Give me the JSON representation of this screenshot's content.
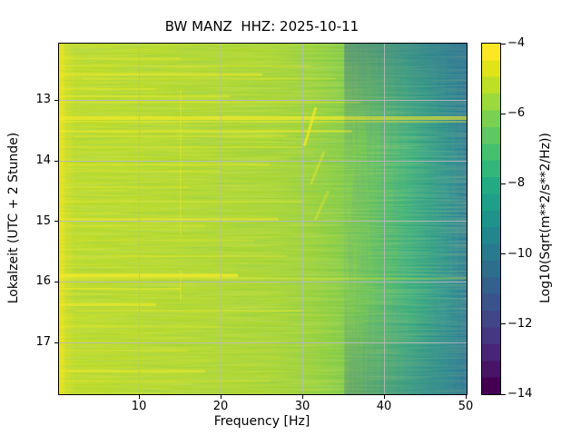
{
  "figure": {
    "title": "BW MANZ  HHZ: 2025-10-11",
    "background": "#ffffff"
  },
  "axes": {
    "xlabel": "Frequency [Hz]",
    "ylabel": "Lokalzeit (UTC + 2 Stunde)",
    "x_ticks": [
      {
        "v": 10,
        "label": "10"
      },
      {
        "v": 20,
        "label": "20"
      },
      {
        "v": 30,
        "label": "30"
      },
      {
        "v": 40,
        "label": "40"
      },
      {
        "v": 50,
        "label": "50"
      }
    ],
    "y_ticks": [
      {
        "v": 13,
        "label": "13"
      },
      {
        "v": 14,
        "label": "14"
      },
      {
        "v": 15,
        "label": "15"
      },
      {
        "v": 16,
        "label": "16"
      },
      {
        "v": 17,
        "label": "17"
      }
    ],
    "grid_color": "#b8b8c0"
  },
  "colorbar": {
    "label": "Log10(Sqrt(m**2/s**2/Hz))",
    "ticks": [
      {
        "v": -4,
        "label": "−4"
      },
      {
        "v": -6,
        "label": "−6"
      },
      {
        "v": -8,
        "label": "−8"
      },
      {
        "v": -10,
        "label": "−10"
      },
      {
        "v": -12,
        "label": "−12"
      },
      {
        "v": -14,
        "label": "−14"
      }
    ],
    "value_range_top_bottom": [
      -4,
      -14
    ],
    "colormap": "viridis",
    "colors_top_to_bottom": [
      "#fde725",
      "#dfe318",
      "#bddf26",
      "#9bd93c",
      "#7ad151",
      "#5ec962",
      "#46c06f",
      "#32b67a",
      "#24aa83",
      "#1f9e89",
      "#1f928c",
      "#23868e",
      "#287a8e",
      "#2d6d8e",
      "#33608d",
      "#3a538b",
      "#404688",
      "#453781",
      "#482576",
      "#481467",
      "#440154"
    ]
  },
  "chart_data": {
    "type": "heatmap",
    "subtype": "spectrogram",
    "title": "BW MANZ  HHZ: 2025-10-11",
    "network_station_channel": "BW MANZ HHZ",
    "date": "2025-10-11",
    "xlabel": "Frequency [Hz]",
    "ylabel": "Lokalzeit (UTC + 2 Stunde)",
    "x_range_hz": [
      0.1,
      50
    ],
    "y_range_hours_local": [
      12.05,
      17.84
    ],
    "colormap": "viridis",
    "value_scale_label": "Log10(Sqrt(m**2/s**2/Hz))",
    "value_range": [
      -14,
      -4
    ],
    "grid": true,
    "legend_position": "right-colorbar",
    "mean_spectrum_profile": [
      {
        "f": 0.2,
        "level": -4.2
      },
      {
        "f": 1.0,
        "level": -5.1
      },
      {
        "f": 10,
        "level": -5.3
      },
      {
        "f": 20,
        "level": -5.4
      },
      {
        "f": 30,
        "level": -5.7
      },
      {
        "f": 35,
        "level": -6.1
      },
      {
        "f": 40,
        "level": -6.8
      },
      {
        "f": 45,
        "level": -7.6
      },
      {
        "f": 50,
        "level": -8.3
      }
    ],
    "heatmap_gradient": [
      {
        "pos": 0,
        "color": "#ece41f"
      },
      {
        "pos": 0.9,
        "color": "#e2e31c"
      },
      {
        "pos": 1.6,
        "color": "#cfdf22"
      },
      {
        "pos": 4,
        "color": "#bcdb29"
      },
      {
        "pos": 30,
        "color": "#b2d82e"
      },
      {
        "pos": 52,
        "color": "#a8d533"
      },
      {
        "pos": 62,
        "color": "#99d13b"
      },
      {
        "pos": 69,
        "color": "#85cc46"
      },
      {
        "pos": 75,
        "color": "#6bc553"
      },
      {
        "pos": 81,
        "color": "#4fbb6b"
      },
      {
        "pos": 86,
        "color": "#38b07c"
      },
      {
        "pos": 91,
        "color": "#2a9e86"
      },
      {
        "pos": 95.5,
        "color": "#268e91"
      },
      {
        "pos": 100,
        "color": "#2c7d96"
      }
    ],
    "edge_shading": {
      "color": "#2d6394",
      "start_frac": 0.7,
      "top_alpha": 0.42,
      "bottom_alpha": 0.28
    },
    "streak_color": "#f2ea2a",
    "transient_streaks": [
      {
        "t": 12.3,
        "f0": 0.1,
        "f1": 15,
        "opacity": 0.45,
        "h": 2
      },
      {
        "t": 12.42,
        "f0": 0.1,
        "f1": 31,
        "opacity": 0.3,
        "h": 2
      },
      {
        "t": 12.56,
        "f0": 0.1,
        "f1": 25,
        "opacity": 0.55,
        "h": 3
      },
      {
        "t": 12.63,
        "f0": 3,
        "f1": 34,
        "opacity": 0.28,
        "h": 2
      },
      {
        "t": 12.8,
        "f0": 0.1,
        "f1": 12,
        "opacity": 0.35,
        "h": 2
      },
      {
        "t": 12.92,
        "f0": 0.1,
        "f1": 21,
        "opacity": 0.45,
        "h": 2
      },
      {
        "t": 13.02,
        "f0": 0.1,
        "f1": 37,
        "opacity": 0.35,
        "h": 2
      },
      {
        "t": 13.28,
        "f0": 0.1,
        "f1": 50,
        "opacity": 0.7,
        "h": 4
      },
      {
        "t": 13.34,
        "f0": 0.1,
        "f1": 50,
        "opacity": 0.4,
        "h": 2
      },
      {
        "t": 13.5,
        "f0": 0.1,
        "f1": 36,
        "opacity": 0.5,
        "h": 3
      },
      {
        "t": 13.58,
        "f0": 2,
        "f1": 28,
        "opacity": 0.32,
        "h": 2
      },
      {
        "t": 13.76,
        "f0": 0.1,
        "f1": 30,
        "opacity": 0.28,
        "h": 2
      },
      {
        "t": 14.05,
        "f0": 1,
        "f1": 26,
        "opacity": 0.45,
        "h": 2
      },
      {
        "t": 14.16,
        "f0": 0.1,
        "f1": 20,
        "opacity": 0.32,
        "h": 2
      },
      {
        "t": 14.42,
        "f0": 0.1,
        "f1": 16,
        "opacity": 0.28,
        "h": 2
      },
      {
        "t": 14.66,
        "f0": 0.1,
        "f1": 30,
        "opacity": 0.32,
        "h": 2
      },
      {
        "t": 14.95,
        "f0": 0.1,
        "f1": 27,
        "opacity": 0.5,
        "h": 3
      },
      {
        "t": 15.06,
        "f0": 0.1,
        "f1": 18,
        "opacity": 0.32,
        "h": 2
      },
      {
        "t": 15.3,
        "f0": 2,
        "f1": 24,
        "opacity": 0.28,
        "h": 2
      },
      {
        "t": 15.56,
        "f0": 0.1,
        "f1": 28,
        "opacity": 0.32,
        "h": 2
      },
      {
        "t": 15.88,
        "f0": 0.1,
        "f1": 22,
        "opacity": 0.8,
        "h": 4
      },
      {
        "t": 15.93,
        "f0": 0.1,
        "f1": 50,
        "opacity": 0.32,
        "h": 2
      },
      {
        "t": 16.1,
        "f0": 0.1,
        "f1": 15,
        "opacity": 0.5,
        "h": 2
      },
      {
        "t": 16.36,
        "f0": 0.1,
        "f1": 12,
        "opacity": 0.6,
        "h": 3
      },
      {
        "t": 16.46,
        "f0": 2,
        "f1": 30,
        "opacity": 0.32,
        "h": 2
      },
      {
        "t": 16.72,
        "f0": 0.1,
        "f1": 20,
        "opacity": 0.28,
        "h": 2
      },
      {
        "t": 17.12,
        "f0": 0.1,
        "f1": 16,
        "opacity": 0.32,
        "h": 2
      },
      {
        "t": 17.46,
        "f0": 0.1,
        "f1": 18,
        "opacity": 0.5,
        "h": 3
      },
      {
        "t": 17.62,
        "f0": 1,
        "f1": 26,
        "opacity": 0.28,
        "h": 2
      }
    ],
    "tonal_lines": [
      {
        "f": 15,
        "t0": 12.8,
        "t1": 15.2,
        "opacity": 0.3
      },
      {
        "f": 15,
        "t0": 15.8,
        "t1": 16.3,
        "opacity": 0.35
      }
    ],
    "chirp_events": [
      {
        "f_start": 31.5,
        "f_end": 30.2,
        "t_start": 13.12,
        "t_end": 13.72,
        "opacity": 0.75
      },
      {
        "f_start": 32.5,
        "f_end": 31.0,
        "t_start": 13.85,
        "t_end": 14.35,
        "opacity": 0.4
      },
      {
        "f_start": 33.0,
        "f_end": 31.5,
        "t_start": 14.5,
        "t_end": 14.95,
        "opacity": 0.35
      }
    ]
  }
}
